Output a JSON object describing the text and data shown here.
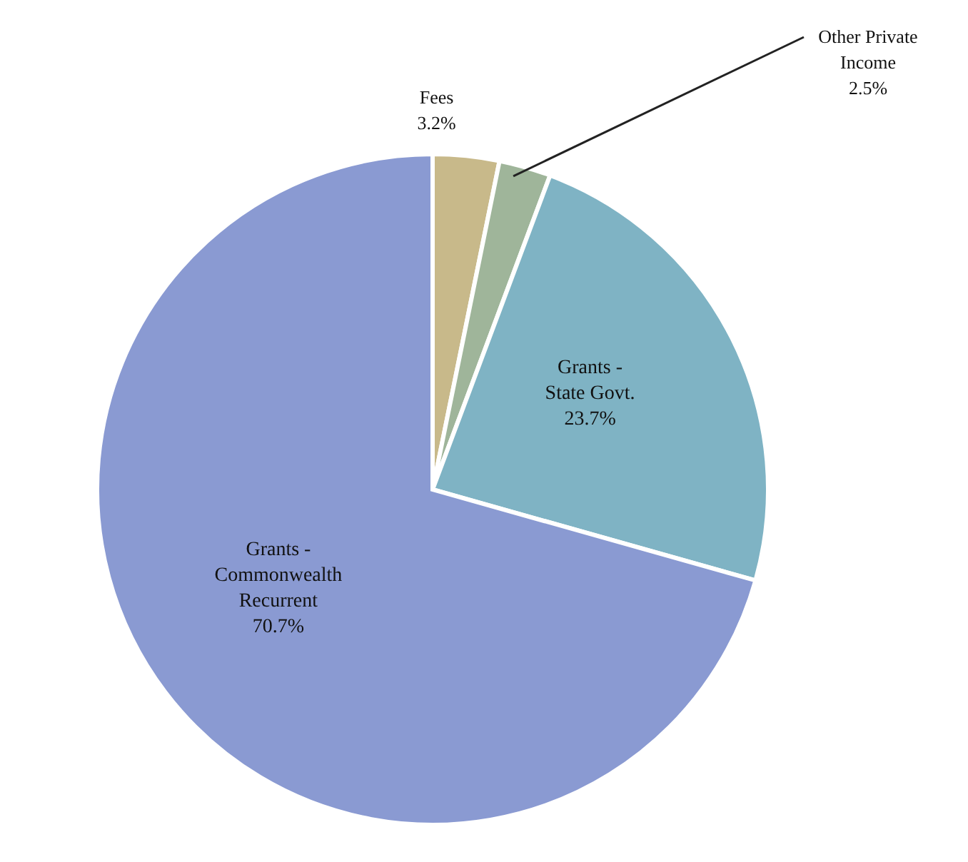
{
  "chart_data": {
    "type": "pie",
    "categories": [
      "Fees",
      "Other Private Income",
      "Grants - State Govt.",
      "Grants - Commonwealth Recurrent"
    ],
    "values": [
      3.2,
      2.5,
      23.7,
      70.7
    ],
    "value_labels": [
      "3.2%",
      "2.5%",
      "23.7%",
      "70.7%"
    ],
    "colors": [
      "#c8b98a",
      "#9fb59a",
      "#7fb3c4",
      "#8a9ad2"
    ],
    "legend": false
  }
}
